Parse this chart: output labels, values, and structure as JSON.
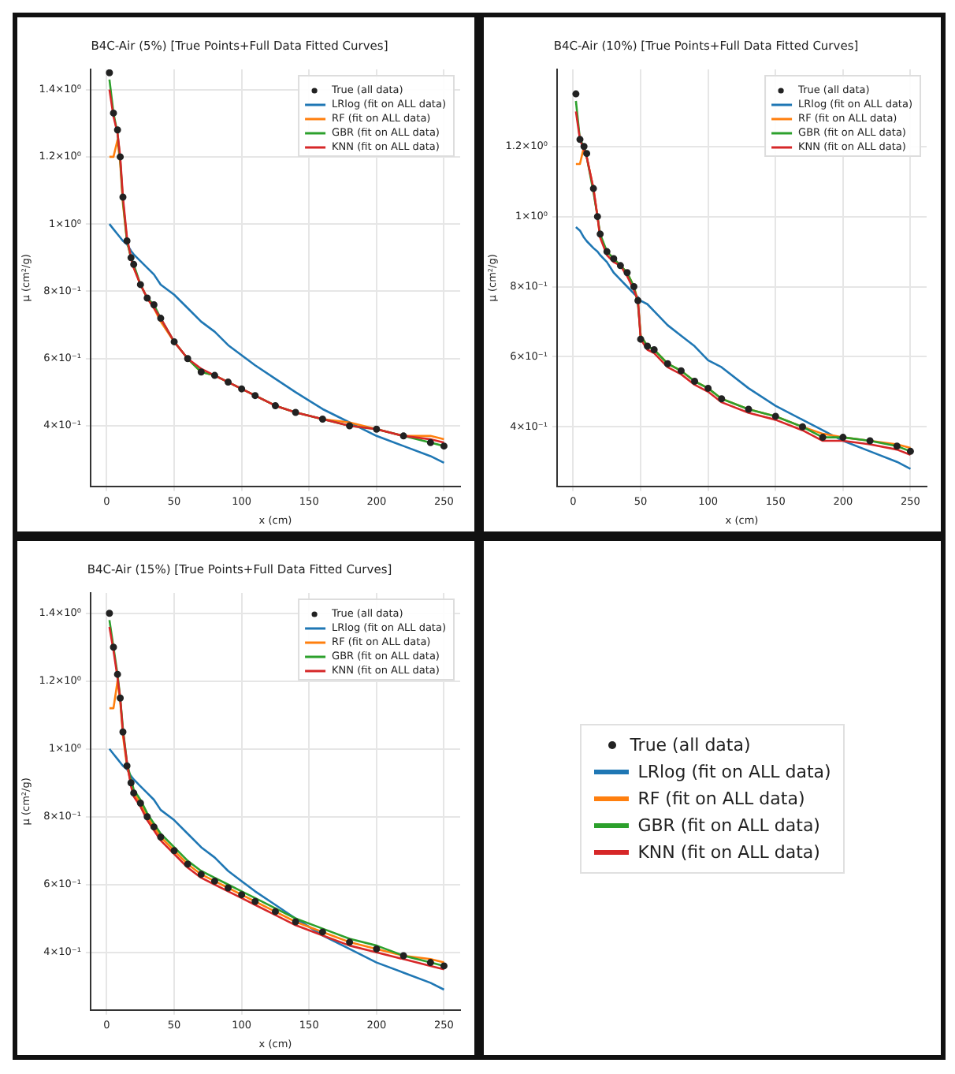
{
  "chart_data": [
    {
      "type": "line",
      "title": "B4C-Air (5%) [True Points+Full Data Fitted Curves]",
      "xlabel": "x (cm)",
      "ylabel": "μ (cm²/g)",
      "legend": "top right",
      "grid": true,
      "line_style": "solid",
      "marker": "none",
      "x": [
        2,
        5,
        8,
        10,
        12,
        15,
        18,
        20,
        25,
        30,
        35,
        40,
        50,
        60,
        70,
        80,
        90,
        100,
        110,
        125,
        140,
        160,
        180,
        200,
        220,
        240,
        250
      ],
      "xlim": [
        -12,
        262
      ],
      "xticks": [
        0,
        50,
        100,
        150,
        200,
        250
      ],
      "ylim": [
        0.22,
        1.46
      ],
      "yticks": [
        {
          "value": 0.4,
          "label": "4×10⁻¹"
        },
        {
          "value": 0.6,
          "label": "6×10⁻¹"
        },
        {
          "value": 0.8,
          "label": "8×10⁻¹"
        },
        {
          "value": 1.0,
          "label": "1×10⁰"
        },
        {
          "value": 1.2,
          "label": "1.2×10⁰"
        },
        {
          "value": 1.4,
          "label": "1.4×10⁰"
        }
      ],
      "series": [
        {
          "name": "True (all data)",
          "type": "scatter",
          "marker": "circle",
          "color": "#222222",
          "values": [
            1.45,
            1.33,
            1.28,
            1.2,
            1.08,
            0.95,
            0.9,
            0.88,
            0.82,
            0.78,
            0.76,
            0.72,
            0.65,
            0.6,
            0.56,
            0.55,
            0.53,
            0.51,
            0.49,
            0.46,
            0.44,
            0.42,
            0.4,
            0.39,
            0.37,
            0.35,
            0.34
          ]
        },
        {
          "name": "LRlog (fit on ALL data)",
          "color": "#1f77b4",
          "values": [
            1.0,
            0.985,
            0.97,
            0.96,
            0.95,
            0.94,
            0.92,
            0.91,
            0.89,
            0.87,
            0.85,
            0.82,
            0.79,
            0.75,
            0.71,
            0.68,
            0.64,
            0.61,
            0.58,
            0.54,
            0.5,
            0.45,
            0.41,
            0.37,
            0.34,
            0.31,
            0.29
          ]
        },
        {
          "name": "RF (fit on ALL data)",
          "color": "#ff7f0e",
          "values": [
            1.2,
            1.2,
            1.25,
            1.18,
            1.06,
            0.95,
            0.9,
            0.87,
            0.82,
            0.78,
            0.75,
            0.71,
            0.65,
            0.6,
            0.56,
            0.55,
            0.53,
            0.51,
            0.49,
            0.46,
            0.44,
            0.42,
            0.41,
            0.39,
            0.37,
            0.37,
            0.36
          ]
        },
        {
          "name": "GBR (fit on ALL data)",
          "color": "#2ca02c",
          "values": [
            1.43,
            1.33,
            1.27,
            1.19,
            1.07,
            0.95,
            0.9,
            0.88,
            0.82,
            0.78,
            0.76,
            0.72,
            0.65,
            0.6,
            0.56,
            0.55,
            0.53,
            0.51,
            0.49,
            0.46,
            0.44,
            0.42,
            0.4,
            0.39,
            0.37,
            0.35,
            0.34
          ]
        },
        {
          "name": "KNN (fit on ALL data)",
          "color": "#d62728",
          "values": [
            1.4,
            1.32,
            1.27,
            1.2,
            1.08,
            0.96,
            0.9,
            0.87,
            0.82,
            0.78,
            0.75,
            0.72,
            0.65,
            0.6,
            0.57,
            0.55,
            0.53,
            0.51,
            0.49,
            0.46,
            0.44,
            0.42,
            0.4,
            0.39,
            0.37,
            0.36,
            0.35
          ]
        }
      ]
    },
    {
      "type": "line",
      "title": "B4C-Air (10%) [True Points+Full Data Fitted Curves]",
      "xlabel": "x (cm)",
      "ylabel": "μ (cm²/g)",
      "legend": "top right",
      "grid": true,
      "line_style": "solid",
      "marker": "none",
      "x": [
        2,
        5,
        8,
        10,
        15,
        18,
        20,
        25,
        30,
        35,
        40,
        45,
        48,
        50,
        55,
        60,
        70,
        80,
        90,
        100,
        110,
        130,
        150,
        170,
        185,
        200,
        220,
        240,
        250
      ],
      "xlim": [
        -12,
        262
      ],
      "xticks": [
        0,
        50,
        100,
        150,
        200,
        250
      ],
      "ylim": [
        0.23,
        1.42
      ],
      "yticks": [
        {
          "value": 0.4,
          "label": "4×10⁻¹"
        },
        {
          "value": 0.6,
          "label": "6×10⁻¹"
        },
        {
          "value": 0.8,
          "label": "8×10⁻¹"
        },
        {
          "value": 1.0,
          "label": "1×10⁰"
        },
        {
          "value": 1.2,
          "label": "1.2×10⁰"
        }
      ],
      "series": [
        {
          "name": "True (all data)",
          "type": "scatter",
          "marker": "circle",
          "color": "#222222",
          "values": [
            1.35,
            1.22,
            1.2,
            1.18,
            1.08,
            1.0,
            0.95,
            0.9,
            0.88,
            0.86,
            0.84,
            0.8,
            0.76,
            0.65,
            0.63,
            0.62,
            0.58,
            0.56,
            0.53,
            0.51,
            0.48,
            0.45,
            0.43,
            0.4,
            0.37,
            0.37,
            0.36,
            0.345,
            0.33
          ]
        },
        {
          "name": "LRlog (fit on ALL data)",
          "color": "#1f77b4",
          "values": [
            0.97,
            0.96,
            0.94,
            0.93,
            0.91,
            0.9,
            0.89,
            0.87,
            0.84,
            0.82,
            0.8,
            0.78,
            0.77,
            0.76,
            0.75,
            0.73,
            0.69,
            0.66,
            0.63,
            0.59,
            0.57,
            0.51,
            0.46,
            0.42,
            0.39,
            0.36,
            0.33,
            0.3,
            0.28
          ]
        },
        {
          "name": "RF (fit on ALL data)",
          "color": "#ff7f0e",
          "values": [
            1.15,
            1.15,
            1.2,
            1.17,
            1.08,
            1.0,
            0.94,
            0.9,
            0.88,
            0.86,
            0.84,
            0.8,
            0.76,
            0.66,
            0.63,
            0.62,
            0.58,
            0.56,
            0.53,
            0.51,
            0.48,
            0.45,
            0.43,
            0.4,
            0.38,
            0.37,
            0.36,
            0.35,
            0.34
          ]
        },
        {
          "name": "GBR (fit on ALL data)",
          "color": "#2ca02c",
          "values": [
            1.33,
            1.22,
            1.2,
            1.17,
            1.07,
            1.0,
            0.95,
            0.9,
            0.88,
            0.86,
            0.84,
            0.8,
            0.75,
            0.66,
            0.63,
            0.62,
            0.58,
            0.56,
            0.53,
            0.51,
            0.48,
            0.45,
            0.43,
            0.4,
            0.37,
            0.37,
            0.36,
            0.345,
            0.33
          ]
        },
        {
          "name": "KNN (fit on ALL data)",
          "color": "#d62728",
          "values": [
            1.3,
            1.22,
            1.19,
            1.17,
            1.08,
            1.0,
            0.94,
            0.89,
            0.87,
            0.86,
            0.83,
            0.79,
            0.76,
            0.65,
            0.62,
            0.61,
            0.57,
            0.55,
            0.52,
            0.5,
            0.47,
            0.44,
            0.42,
            0.39,
            0.36,
            0.36,
            0.35,
            0.335,
            0.32
          ]
        }
      ]
    },
    {
      "type": "line",
      "title": "B4C-Air (15%) [True Points+Full Data Fitted Curves]",
      "xlabel": "x (cm)",
      "ylabel": "μ (cm²/g)",
      "legend": "top right",
      "grid": true,
      "line_style": "solid",
      "marker": "none",
      "x": [
        2,
        5,
        8,
        10,
        12,
        15,
        18,
        20,
        25,
        30,
        35,
        40,
        50,
        60,
        70,
        80,
        90,
        100,
        110,
        125,
        140,
        160,
        180,
        200,
        220,
        240,
        250
      ],
      "xlim": [
        -12,
        262
      ],
      "xticks": [
        0,
        50,
        100,
        150,
        200,
        250
      ],
      "ylim": [
        0.23,
        1.46
      ],
      "yticks": [
        {
          "value": 0.4,
          "label": "4×10⁻¹"
        },
        {
          "value": 0.6,
          "label": "6×10⁻¹"
        },
        {
          "value": 0.8,
          "label": "8×10⁻¹"
        },
        {
          "value": 1.0,
          "label": "1×10⁰"
        },
        {
          "value": 1.2,
          "label": "1.2×10⁰"
        },
        {
          "value": 1.4,
          "label": "1.4×10⁰"
        }
      ],
      "series": [
        {
          "name": "True (all data)",
          "type": "scatter",
          "marker": "circle",
          "color": "#222222",
          "values": [
            1.4,
            1.3,
            1.22,
            1.15,
            1.05,
            0.95,
            0.9,
            0.87,
            0.84,
            0.8,
            0.77,
            0.74,
            0.7,
            0.66,
            0.63,
            0.61,
            0.59,
            0.57,
            0.55,
            0.52,
            0.49,
            0.46,
            0.43,
            0.41,
            0.39,
            0.37,
            0.36
          ]
        },
        {
          "name": "LRlog (fit on ALL data)",
          "color": "#1f77b4",
          "values": [
            1.0,
            0.985,
            0.97,
            0.96,
            0.95,
            0.94,
            0.92,
            0.91,
            0.89,
            0.87,
            0.85,
            0.82,
            0.79,
            0.75,
            0.71,
            0.68,
            0.64,
            0.61,
            0.58,
            0.54,
            0.5,
            0.45,
            0.41,
            0.37,
            0.34,
            0.31,
            0.29
          ]
        },
        {
          "name": "RF (fit on ALL data)",
          "color": "#ff7f0e",
          "values": [
            1.12,
            1.12,
            1.2,
            1.14,
            1.04,
            0.95,
            0.9,
            0.87,
            0.84,
            0.8,
            0.77,
            0.74,
            0.7,
            0.66,
            0.63,
            0.61,
            0.59,
            0.57,
            0.55,
            0.52,
            0.49,
            0.46,
            0.43,
            0.41,
            0.39,
            0.38,
            0.37
          ]
        },
        {
          "name": "GBR (fit on ALL data)",
          "color": "#2ca02c",
          "values": [
            1.38,
            1.3,
            1.22,
            1.15,
            1.06,
            0.96,
            0.91,
            0.88,
            0.85,
            0.81,
            0.78,
            0.75,
            0.71,
            0.67,
            0.64,
            0.62,
            0.6,
            0.58,
            0.56,
            0.53,
            0.5,
            0.47,
            0.44,
            0.42,
            0.39,
            0.37,
            0.36
          ]
        },
        {
          "name": "KNN (fit on ALL data)",
          "color": "#d62728",
          "values": [
            1.36,
            1.29,
            1.21,
            1.15,
            1.05,
            0.96,
            0.89,
            0.86,
            0.83,
            0.79,
            0.76,
            0.73,
            0.69,
            0.65,
            0.62,
            0.6,
            0.58,
            0.56,
            0.54,
            0.51,
            0.48,
            0.45,
            0.42,
            0.4,
            0.38,
            0.36,
            0.35
          ]
        }
      ]
    }
  ]
}
